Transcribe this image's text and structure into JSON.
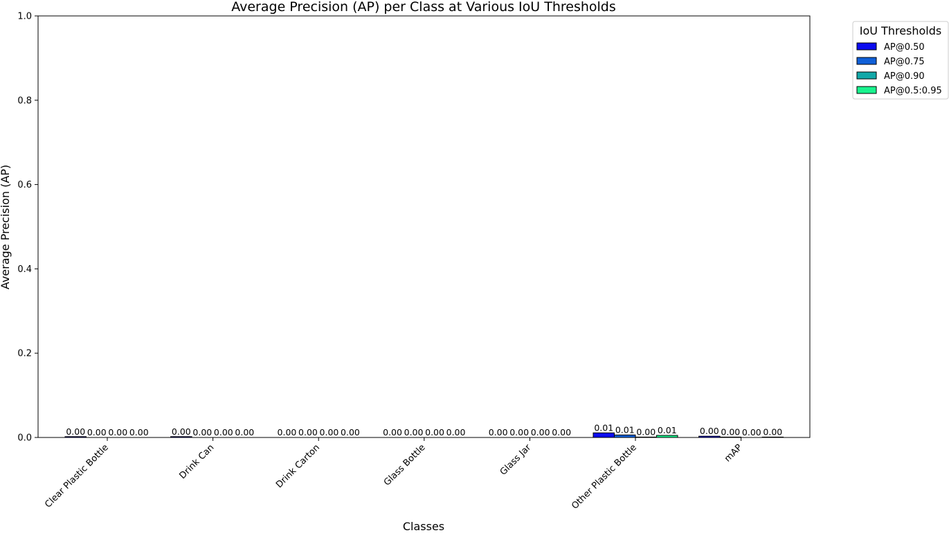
{
  "chart_data": {
    "type": "bar",
    "title": "Average Precision (AP) per Class at Various IoU Thresholds",
    "xlabel": "Classes",
    "ylabel": "Average Precision (AP)",
    "ylim": [
      0,
      1.0
    ],
    "yticks": [
      "0.0",
      "0.2",
      "0.4",
      "0.6",
      "0.8",
      "1.0"
    ],
    "categories": [
      "Clear Plastic Bottle",
      "Drink Can",
      "Drink Carton",
      "Glass Bottle",
      "Glass Jar",
      "Other Plastic Bottle",
      "mAP"
    ],
    "series": [
      {
        "name": "AP@0.50",
        "color": "#0b0bef",
        "values": [
          0.002,
          0.002,
          0.0,
          0.0,
          0.0,
          0.011,
          0.003
        ]
      },
      {
        "name": "AP@0.75",
        "color": "#1060d8",
        "values": [
          0.0,
          0.0,
          0.0,
          0.0,
          0.0,
          0.006,
          0.001
        ]
      },
      {
        "name": "AP@0.90",
        "color": "#12a8a8",
        "values": [
          0.0,
          0.0,
          0.0,
          0.0,
          0.0,
          0.001,
          0.0
        ]
      },
      {
        "name": "AP@0.5:0.95",
        "color": "#19f38e",
        "values": [
          0.0,
          0.0,
          0.0,
          0.0,
          0.0,
          0.005,
          0.001
        ]
      }
    ],
    "bar_labels": [
      [
        "0.00",
        "0.00",
        "0.00",
        "0.00"
      ],
      [
        "0.00",
        "0.00",
        "0.00",
        "0.00"
      ],
      [
        "0.00",
        "0.00",
        "0.00",
        "0.00"
      ],
      [
        "0.00",
        "0.00",
        "0.00",
        "0.00"
      ],
      [
        "0.00",
        "0.00",
        "0.00",
        "0.00"
      ],
      [
        "0.01",
        "0.01",
        "0.00",
        "0.01"
      ],
      [
        "0.00",
        "0.00",
        "0.00",
        "0.00"
      ]
    ],
    "legend": {
      "title": "IoU Thresholds",
      "placement": "outside-top-right"
    },
    "grid": false
  }
}
